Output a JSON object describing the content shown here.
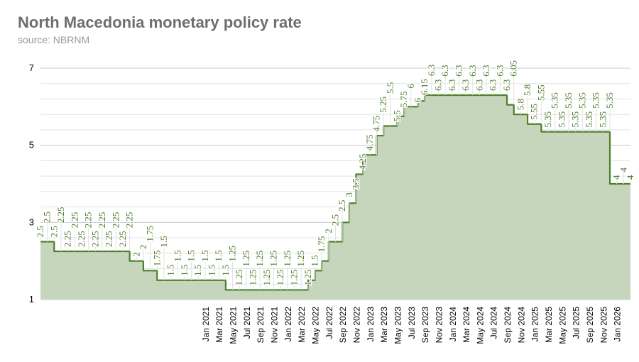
{
  "chart_data": {
    "type": "line",
    "subtype": "step-area",
    "title": "North Macedonia monetary policy rate",
    "subtitle": "source: NBRNM",
    "xlabel": "",
    "ylabel": "",
    "ylim": [
      1,
      7
    ],
    "y_ticks": [
      "7",
      "5",
      "3",
      "1"
    ],
    "y_tick_values": [
      7,
      5,
      3,
      1
    ],
    "grid": true,
    "start_month": "Jan 2019",
    "x_ticks": [
      "Jan 2021",
      "Mar 2021",
      "May 2021",
      "Jul 2021",
      "Sep 2021",
      "Nov 2021",
      "Jan 2022",
      "Mar 2022",
      "May 2022",
      "Jul 2022",
      "Sep 2022",
      "Nov 2022",
      "Jan 2023",
      "Mar 2023",
      "May 2023",
      "Jul 2023",
      "Sep 2023",
      "Nov 2023",
      "Jan 2024",
      "Mar 2024",
      "May 2024",
      "Jul 2024",
      "Sep 2024",
      "Nov 2024",
      "Jan 2025",
      "Mar 2025",
      "May 2025",
      "Jul 2025",
      "Sep 2025",
      "Nov 2025",
      "Jan 2026"
    ],
    "x_tick_first_index": 24,
    "x_tick_step": 2,
    "series": [
      {
        "name": "Policy rate",
        "values": [
          2.5,
          2.5,
          2.5,
          2.25,
          2.25,
          2.25,
          2.25,
          2.25,
          2.25,
          2.25,
          2.25,
          2.25,
          2.25,
          2.25,
          2,
          2,
          1.75,
          1.75,
          1.5,
          1.5,
          1.5,
          1.5,
          1.5,
          1.5,
          1.5,
          1.5,
          1.5,
          1.5,
          1.25,
          1.25,
          1.25,
          1.25,
          1.25,
          1.25,
          1.25,
          1.25,
          1.25,
          1.25,
          1.25,
          1.25,
          1.5,
          1.75,
          2,
          2.5,
          2.5,
          3,
          3.5,
          4.25,
          4.75,
          4.75,
          5.25,
          5.5,
          5.5,
          5.75,
          6,
          6,
          6.15,
          6.3,
          6.3,
          6.3,
          6.3,
          6.3,
          6.3,
          6.3,
          6.3,
          6.3,
          6.3,
          6.3,
          6.3,
          6.05,
          5.8,
          5.8,
          5.55,
          5.55,
          5.35,
          5.35,
          5.35,
          5.35,
          5.35,
          5.35,
          5.35,
          5.35,
          5.35,
          5.35,
          4,
          4,
          4
        ]
      }
    ],
    "colors": {
      "line": "#4d7f2b",
      "fill": "#c5d6bd",
      "label": "#4a7a28",
      "grid": "#e3e3e3",
      "grid_major": "#c8c8c8"
    }
  }
}
